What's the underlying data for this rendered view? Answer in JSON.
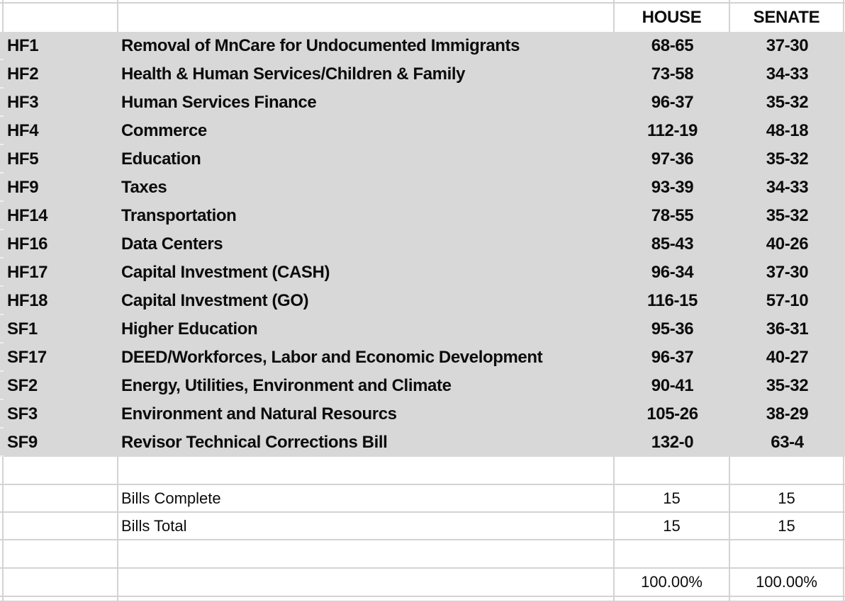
{
  "app": {
    "kind": "spreadsheet-table"
  },
  "colors": {
    "row_fill": "#d8d8d8",
    "gridline": "#d3d3d3",
    "text": "#0c0c0c"
  },
  "table": {
    "headers": {
      "house": "HOUSE",
      "senate": "SENATE"
    },
    "bills": [
      {
        "id": "HF1",
        "name": "Removal of MnCare for Undocumented Immigrants",
        "house": "68-65",
        "senate": "37-30"
      },
      {
        "id": "HF2",
        "name": "Health & Human Services/Children & Family",
        "house": "73-58",
        "senate": "34-33"
      },
      {
        "id": "HF3",
        "name": "Human Services Finance",
        "house": "96-37",
        "senate": "35-32"
      },
      {
        "id": "HF4",
        "name": "Commerce",
        "house": "112-19",
        "senate": "48-18"
      },
      {
        "id": "HF5",
        "name": "Education",
        "house": "97-36",
        "senate": "35-32"
      },
      {
        "id": "HF9",
        "name": "Taxes",
        "house": "93-39",
        "senate": "34-33"
      },
      {
        "id": "HF14",
        "name": "Transportation",
        "house": "78-55",
        "senate": "35-32"
      },
      {
        "id": "HF16",
        "name": "Data Centers",
        "house": "85-43",
        "senate": "40-26"
      },
      {
        "id": "HF17",
        "name": "Capital Investment (CASH)",
        "house": "96-34",
        "senate": "37-30"
      },
      {
        "id": "HF18",
        "name": "Capital Investment (GO)",
        "house": "116-15",
        "senate": "57-10"
      },
      {
        "id": "SF1",
        "name": "Higher Education",
        "house": "95-36",
        "senate": "36-31"
      },
      {
        "id": "SF17",
        "name": "DEED/Workforces, Labor and Economic Development",
        "house": "96-37",
        "senate": "40-27"
      },
      {
        "id": "SF2",
        "name": "Energy, Utilities, Environment and Climate",
        "house": "90-41",
        "senate": "35-32"
      },
      {
        "id": "SF3",
        "name": "Environment and Natural Resourcs",
        "house": "105-26",
        "senate": "38-29"
      },
      {
        "id": "SF9",
        "name": "Revisor Technical Corrections Bill",
        "house": "132-0",
        "senate": "63-4"
      }
    ],
    "summary": [
      {
        "label": "Bills Complete",
        "house": "15",
        "senate": "15"
      },
      {
        "label": "Bills Total",
        "house": "15",
        "senate": "15"
      }
    ],
    "percent": {
      "house": "100.00%",
      "senate": "100.00%"
    }
  }
}
